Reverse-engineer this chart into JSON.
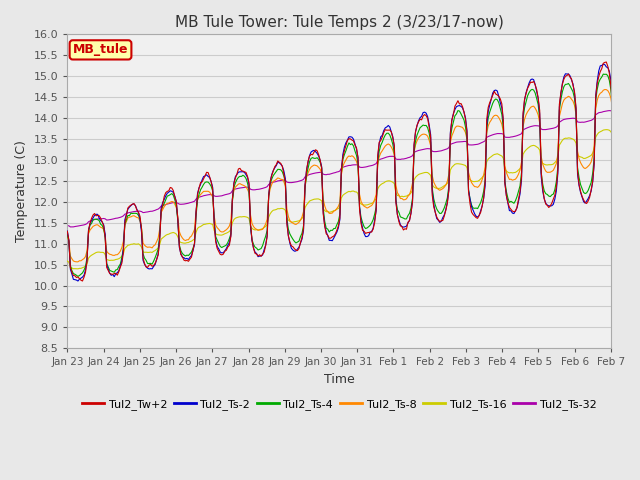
{
  "title": "MB Tule Tower: Tule Temps 2 (3/23/17-now)",
  "xlabel": "Time",
  "ylabel": "Temperature (C)",
  "ylim": [
    8.5,
    16.0
  ],
  "yticks": [
    8.5,
    9.0,
    9.5,
    10.0,
    10.5,
    11.0,
    11.5,
    12.0,
    12.5,
    13.0,
    13.5,
    14.0,
    14.5,
    15.0,
    15.5,
    16.0
  ],
  "xtick_labels": [
    "Jan 23",
    "Jan 24",
    "Jan 25",
    "Jan 26",
    "Jan 27",
    "Jan 28",
    "Jan 29",
    "Jan 30",
    "Jan 31",
    "Feb 1",
    "Feb 2",
    "Feb 3",
    "Feb 4",
    "Feb 5",
    "Feb 6",
    "Feb 7"
  ],
  "legend_entries": [
    "Tul2_Tw+2",
    "Tul2_Ts-2",
    "Tul2_Ts-4",
    "Tul2_Ts-8",
    "Tul2_Ts-16",
    "Tul2_Ts-32"
  ],
  "legend_colors": [
    "#cc0000",
    "#0000cc",
    "#00aa00",
    "#ff8800",
    "#cccc00",
    "#aa00aa"
  ],
  "series_colors": [
    "#cc0000",
    "#0000cc",
    "#00aa00",
    "#ff8800",
    "#cccc00",
    "#aa00aa"
  ],
  "background_color": "#e8e8e8",
  "plot_bg_color": "#f0f0f0",
  "grid_color": "#cccccc",
  "annotation_box": {
    "text": "MB_tule",
    "facecolor": "#ffffaa",
    "edgecolor": "#cc0000",
    "textcolor": "#cc0000"
  }
}
